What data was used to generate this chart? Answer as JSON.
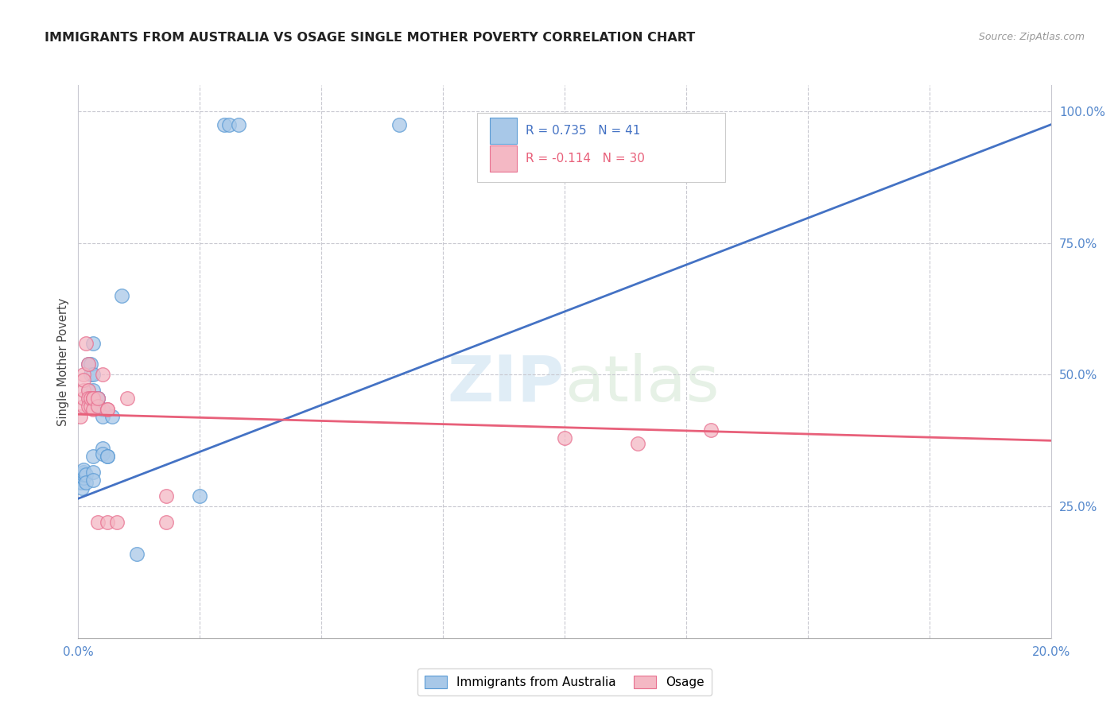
{
  "title": "IMMIGRANTS FROM AUSTRALIA VS OSAGE SINGLE MOTHER POVERTY CORRELATION CHART",
  "source": "Source: ZipAtlas.com",
  "ylabel": "Single Mother Poverty",
  "legend_label1": "Immigrants from Australia",
  "legend_label2": "Osage",
  "R1": 0.735,
  "N1": 41,
  "R2": -0.114,
  "N2": 30,
  "blue_fill": "#A8C8E8",
  "blue_edge": "#5B9BD5",
  "pink_fill": "#F4B8C4",
  "pink_edge": "#E87090",
  "blue_line": "#4472C4",
  "pink_line": "#E8607A",
  "grid_color": "#C8C8D0",
  "blue_scatter": [
    [
      0.0005,
      0.3
    ],
    [
      0.0005,
      0.295
    ],
    [
      0.0008,
      0.295
    ],
    [
      0.001,
      0.305
    ],
    [
      0.0008,
      0.285
    ],
    [
      0.001,
      0.305
    ],
    [
      0.001,
      0.31
    ],
    [
      0.001,
      0.315
    ],
    [
      0.001,
      0.32
    ],
    [
      0.0015,
      0.31
    ],
    [
      0.0015,
      0.295
    ],
    [
      0.002,
      0.455
    ],
    [
      0.002,
      0.47
    ],
    [
      0.002,
      0.52
    ],
    [
      0.0025,
      0.5
    ],
    [
      0.0025,
      0.52
    ],
    [
      0.003,
      0.56
    ],
    [
      0.003,
      0.47
    ],
    [
      0.003,
      0.5
    ],
    [
      0.003,
      0.345
    ],
    [
      0.003,
      0.315
    ],
    [
      0.003,
      0.3
    ],
    [
      0.004,
      0.455
    ],
    [
      0.004,
      0.44
    ],
    [
      0.004,
      0.455
    ],
    [
      0.004,
      0.44
    ],
    [
      0.005,
      0.435
    ],
    [
      0.005,
      0.42
    ],
    [
      0.005,
      0.36
    ],
    [
      0.005,
      0.35
    ],
    [
      0.006,
      0.345
    ],
    [
      0.006,
      0.345
    ],
    [
      0.007,
      0.42
    ],
    [
      0.009,
      0.65
    ],
    [
      0.025,
      0.27
    ],
    [
      0.012,
      0.16
    ],
    [
      0.03,
      0.975
    ],
    [
      0.031,
      0.975
    ],
    [
      0.033,
      0.975
    ],
    [
      0.066,
      0.975
    ],
    [
      0.13,
      0.975
    ]
  ],
  "pink_scatter": [
    [
      0.0005,
      0.42
    ],
    [
      0.001,
      0.44
    ],
    [
      0.001,
      0.455
    ],
    [
      0.001,
      0.47
    ],
    [
      0.001,
      0.5
    ],
    [
      0.001,
      0.49
    ],
    [
      0.0015,
      0.56
    ],
    [
      0.002,
      0.52
    ],
    [
      0.002,
      0.47
    ],
    [
      0.002,
      0.455
    ],
    [
      0.002,
      0.44
    ],
    [
      0.0025,
      0.44
    ],
    [
      0.0025,
      0.455
    ],
    [
      0.003,
      0.455
    ],
    [
      0.003,
      0.435
    ],
    [
      0.003,
      0.455
    ],
    [
      0.004,
      0.44
    ],
    [
      0.004,
      0.455
    ],
    [
      0.004,
      0.22
    ],
    [
      0.005,
      0.5
    ],
    [
      0.006,
      0.435
    ],
    [
      0.006,
      0.435
    ],
    [
      0.006,
      0.22
    ],
    [
      0.008,
      0.22
    ],
    [
      0.01,
      0.455
    ],
    [
      0.018,
      0.27
    ],
    [
      0.018,
      0.22
    ],
    [
      0.1,
      0.38
    ],
    [
      0.115,
      0.37
    ],
    [
      0.13,
      0.395
    ]
  ],
  "xlim": [
    0.0,
    0.2
  ],
  "ylim": [
    0.0,
    1.05
  ],
  "yticks": [
    1.0,
    0.75,
    0.5,
    0.25
  ],
  "ytick_labels": [
    "100.0%",
    "75.0%",
    "50.0%",
    "25.0%"
  ],
  "blue_trendline": [
    [
      0.0,
      0.265
    ],
    [
      0.2,
      0.975
    ]
  ],
  "pink_trendline": [
    [
      0.0,
      0.425
    ],
    [
      0.2,
      0.375
    ]
  ]
}
